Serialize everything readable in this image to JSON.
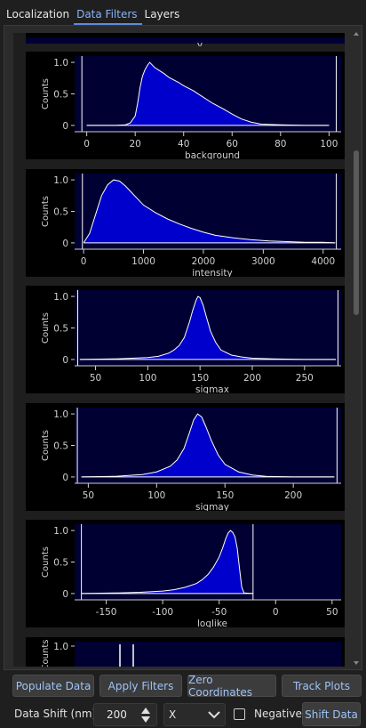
{
  "tabs": [
    {
      "label": "Localization",
      "active": false
    },
    {
      "label": "Data Filters",
      "active": true
    },
    {
      "label": "Layers",
      "active": false
    }
  ],
  "colors": {
    "accent": "#5b8ae0",
    "plot_background": "#000033",
    "histogram_fill": "#0000cc",
    "histogram_outline": "#ffffff"
  },
  "chart_data": [
    {
      "type": "area",
      "top_clipped_label": "y"
    },
    {
      "type": "area",
      "xlabel": "background",
      "ylabel": "Counts",
      "xlim": [
        -5,
        105
      ],
      "ylim": [
        -0.1,
        1.1
      ],
      "xticks": [
        0,
        20,
        40,
        60,
        80,
        100
      ],
      "xtick_labels": [
        "0",
        "20",
        "40",
        "60",
        "80",
        "100"
      ],
      "yticks": [
        0,
        0.5,
        1
      ],
      "ytick_labels": [
        "0",
        "0.5",
        "1.0"
      ],
      "x": [
        0,
        12,
        16,
        18,
        20,
        21,
        22,
        23,
        24,
        25,
        26,
        27,
        28,
        30,
        32,
        34,
        36,
        38,
        40,
        44,
        48,
        52,
        56,
        60,
        64,
        68,
        72,
        80,
        90,
        100
      ],
      "y": [
        0,
        0,
        0.01,
        0.04,
        0.15,
        0.35,
        0.6,
        0.78,
        0.88,
        0.95,
        1.0,
        0.96,
        0.92,
        0.87,
        0.82,
        0.76,
        0.72,
        0.68,
        0.63,
        0.55,
        0.45,
        0.35,
        0.27,
        0.18,
        0.1,
        0.05,
        0.02,
        0.01,
        0,
        0
      ],
      "filter_range": [
        -2,
        103
      ]
    },
    {
      "type": "area",
      "xlabel": "intensity",
      "ylabel": "Counts",
      "xlim": [
        -150,
        4300
      ],
      "ylim": [
        -0.1,
        1.1
      ],
      "xticks": [
        0,
        1000,
        2000,
        3000,
        4000
      ],
      "xtick_labels": [
        "0",
        "1000",
        "2000",
        "3000",
        "4000"
      ],
      "yticks": [
        0,
        0.5,
        1
      ],
      "ytick_labels": [
        "0",
        "0.5",
        "1.0"
      ],
      "x": [
        0,
        100,
        200,
        300,
        400,
        500,
        600,
        700,
        800,
        900,
        1000,
        1200,
        1400,
        1600,
        1800,
        2000,
        2200,
        2500,
        2800,
        3100,
        3400,
        3700,
        4000,
        4200
      ],
      "y": [
        0,
        0.15,
        0.45,
        0.75,
        0.92,
        1.0,
        0.98,
        0.9,
        0.8,
        0.7,
        0.6,
        0.48,
        0.38,
        0.3,
        0.23,
        0.17,
        0.12,
        0.08,
        0.05,
        0.03,
        0.02,
        0.01,
        0.01,
        0
      ],
      "filter_range": [
        -20,
        4220
      ]
    },
    {
      "type": "area",
      "xlabel": "sigmax",
      "ylabel": "Counts",
      "xlim": [
        30,
        285
      ],
      "ylim": [
        -0.1,
        1.1
      ],
      "xticks": [
        50,
        100,
        150,
        200,
        250
      ],
      "xtick_labels": [
        "50",
        "100",
        "150",
        "200",
        "250"
      ],
      "yticks": [
        0,
        0.5,
        1
      ],
      "ytick_labels": [
        "0",
        "0.5",
        "1.0"
      ],
      "x": [
        35,
        70,
        100,
        110,
        120,
        125,
        130,
        135,
        140,
        143,
        146,
        148,
        150,
        153,
        156,
        160,
        165,
        170,
        180,
        190,
        200,
        220,
        250,
        280
      ],
      "y": [
        0,
        0.01,
        0.03,
        0.05,
        0.1,
        0.15,
        0.22,
        0.35,
        0.6,
        0.78,
        0.93,
        1.0,
        0.98,
        0.86,
        0.68,
        0.45,
        0.27,
        0.15,
        0.07,
        0.04,
        0.02,
        0.01,
        0,
        0
      ],
      "filter_range": [
        33,
        282
      ]
    },
    {
      "type": "area",
      "xlabel": "sigmay",
      "ylabel": "Counts",
      "xlim": [
        40,
        235
      ],
      "ylim": [
        -0.1,
        1.1
      ],
      "xticks": [
        50,
        100,
        150,
        200
      ],
      "xtick_labels": [
        "50",
        "100",
        "150",
        "200"
      ],
      "yticks": [
        0,
        0.5,
        1
      ],
      "ytick_labels": [
        "0",
        "0.5",
        "1.0"
      ],
      "x": [
        45,
        70,
        90,
        100,
        110,
        115,
        120,
        124,
        127,
        130,
        133,
        136,
        140,
        145,
        150,
        160,
        170,
        180,
        200,
        230
      ],
      "y": [
        0,
        0.01,
        0.04,
        0.08,
        0.17,
        0.27,
        0.45,
        0.7,
        0.9,
        1.0,
        0.95,
        0.8,
        0.58,
        0.35,
        0.2,
        0.08,
        0.03,
        0.01,
        0,
        0
      ],
      "filter_range": [
        42,
        232
      ]
    },
    {
      "type": "area",
      "xlabel": "loglike",
      "ylabel": "Counts",
      "xlim": [
        -178,
        58
      ],
      "ylim": [
        -0.1,
        1.1
      ],
      "xticks": [
        -150,
        -100,
        -50,
        0,
        50
      ],
      "xtick_labels": [
        "-150",
        "-100",
        "-50",
        "0",
        "50"
      ],
      "yticks": [
        0,
        0.5,
        1
      ],
      "ytick_labels": [
        "0",
        "0.5",
        "1.0"
      ],
      "x": [
        -172,
        -140,
        -120,
        -100,
        -90,
        -80,
        -70,
        -65,
        -60,
        -55,
        -50,
        -47,
        -44,
        -42,
        -40,
        -38,
        -36,
        -34,
        -32,
        -30,
        -28,
        -20
      ],
      "y": [
        0,
        0.01,
        0.02,
        0.04,
        0.06,
        0.1,
        0.16,
        0.22,
        0.3,
        0.42,
        0.58,
        0.72,
        0.88,
        0.96,
        1.0,
        0.97,
        0.9,
        0.72,
        0.4,
        0.1,
        0.01,
        0
      ],
      "filter_range": [
        -172,
        -20
      ]
    },
    {
      "type": "area",
      "ylabel": "Counts",
      "yticks": [
        1
      ],
      "ytick_labels": [
        "1.0"
      ],
      "spike_x": [
        0.17,
        0.22
      ]
    }
  ],
  "buttons": {
    "populate_data": "Populate Data",
    "apply_filters": "Apply Filters",
    "zero_coordinates": "Zero Coordinates",
    "track_plots": "Track Plots"
  },
  "shift": {
    "label": "Data Shift (nm)",
    "value": "200",
    "axis": "X",
    "negative_label": "Negative",
    "negative_checked": false,
    "button": "Shift Data"
  }
}
